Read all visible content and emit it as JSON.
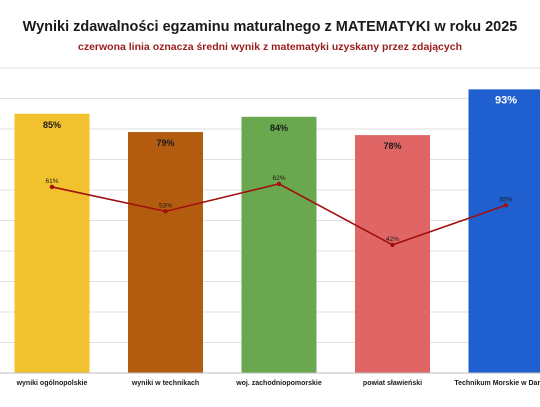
{
  "chart_data": {
    "type": "bar",
    "title": "Wyniki zdawalności egzaminu maturalnego z MATEMATYKI w roku 2025",
    "subtitle": "czerwona linia oznacza średni wynik z matematyki uzyskany przez zdających",
    "categories": [
      "wyniki ogólnopolskie",
      "wyniki w technikach",
      "woj. zachodniopomorskie",
      "powiat sławieński",
      "Technikum Morskie w Darłowie"
    ],
    "series": [
      {
        "type": "bar",
        "values": [
          85,
          79,
          84,
          78,
          93
        ],
        "labels": [
          "85%",
          "79%",
          "84%",
          "78%",
          "93%"
        ],
        "colors": [
          "#f2c12e",
          "#b35c0f",
          "#6aa84f",
          "#e06666",
          "#1f5fcf"
        ]
      },
      {
        "type": "line",
        "values": [
          61,
          53,
          62,
          42,
          55
        ],
        "labels": [
          "61%",
          "53%",
          "62%",
          "42%",
          "55%"
        ],
        "color": "#a01010"
      }
    ],
    "xlabel": "",
    "ylabel": "",
    "ylim": [
      0,
      100
    ],
    "grid": true,
    "legend": "none"
  }
}
